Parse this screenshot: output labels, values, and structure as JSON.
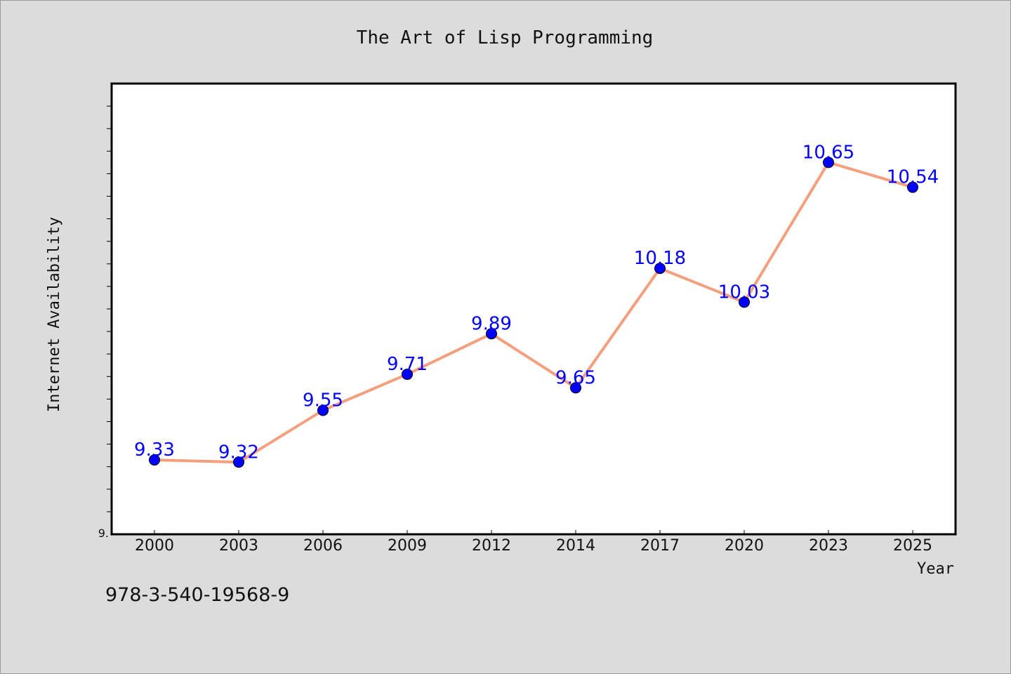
{
  "chart_data": {
    "type": "line",
    "title": "The Art of Lisp Programming",
    "xlabel": "Year",
    "ylabel": "Internet Availability",
    "categories": [
      "2000",
      "2003",
      "2006",
      "2009",
      "2012",
      "2014",
      "2017",
      "2020",
      "2023",
      "2025"
    ],
    "series": [
      {
        "values": [
          9.33,
          9.32,
          9.55,
          9.71,
          9.89,
          9.65,
          10.18,
          10.03,
          10.65,
          10.54
        ],
        "data_labels": [
          "9.33",
          "9.32",
          "9.55",
          "9.71",
          "9.89",
          "9.65",
          "10.18",
          "10.03",
          "10.65",
          "10.54"
        ],
        "line_color": "#f4a07f",
        "marker_color": "#0000ff"
      }
    ],
    "yticks": [
      "9."
    ],
    "ylim": [
      9.0,
      11.0
    ],
    "grid": false,
    "legend": "none",
    "label_color": "#0000ff"
  },
  "caption": "978-3-540-19568-9"
}
